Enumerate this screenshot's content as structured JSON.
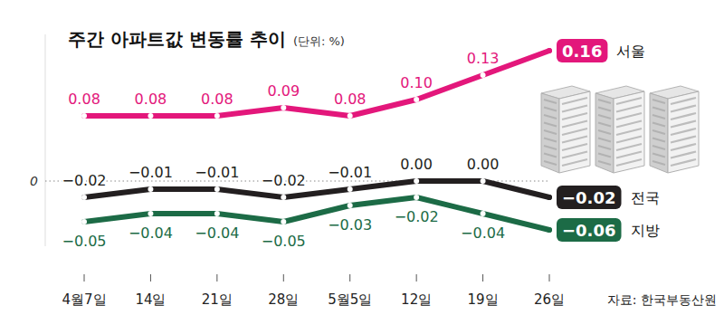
{
  "chart_data": {
    "type": "line",
    "title": "주간 아파트값 변동률 추이",
    "subtitle": "(단위: %)",
    "source": "자료: 한국부동산원",
    "categories": [
      "4월7일",
      "14일",
      "21일",
      "28일",
      "5월5일",
      "12일",
      "19일",
      "26일"
    ],
    "series": [
      {
        "name": "서울",
        "color": "#e3177b",
        "values": [
          0.08,
          0.08,
          0.08,
          0.09,
          0.08,
          0.1,
          0.13,
          0.16
        ],
        "value_labels": [
          "0.08",
          "0.08",
          "0.08",
          "0.09",
          "0.08",
          "0.10",
          "0.13",
          "0.16"
        ]
      },
      {
        "name": "전국",
        "color": "#231f20",
        "values": [
          -0.02,
          -0.01,
          -0.01,
          -0.02,
          -0.01,
          0.0,
          0.0,
          -0.02
        ],
        "value_labels": [
          "−0.02",
          "−0.01",
          "−0.01",
          "−0.02",
          "−0.01",
          "0.00",
          "0.00",
          "−0.02"
        ]
      },
      {
        "name": "지방",
        "color": "#1c6b46",
        "values": [
          -0.05,
          -0.04,
          -0.04,
          -0.05,
          -0.03,
          -0.02,
          -0.04,
          -0.06
        ],
        "value_labels": [
          "−0.05",
          "−0.04",
          "−0.04",
          "−0.05",
          "−0.03",
          "−0.02",
          "−0.04",
          "−0.06"
        ]
      }
    ],
    "ylim": [
      -0.08,
      0.18
    ],
    "yticks": [
      0
    ],
    "grid": true,
    "data_labels": true,
    "marker": "circle"
  }
}
